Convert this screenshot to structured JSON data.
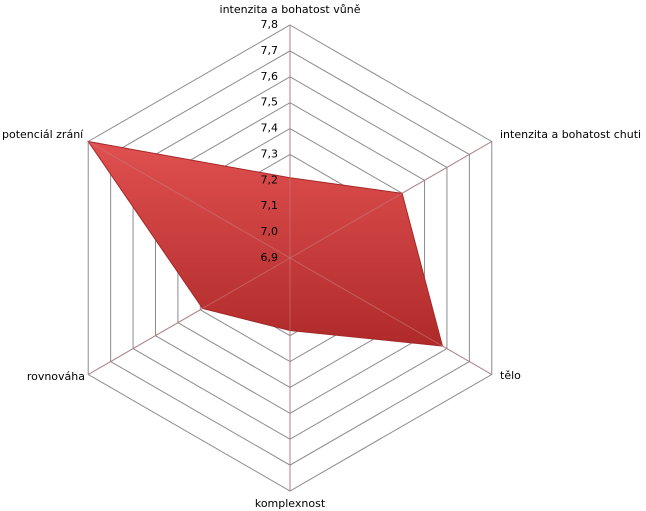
{
  "chart_data": {
    "type": "radar",
    "categories": [
      "intenzita a bohatost vůně",
      "intenzita a bohatost chuti",
      "tělo",
      "komplexnost",
      "rovnováha",
      "potenciál zrání"
    ],
    "values": [
      7.21,
      7.4,
      7.58,
      7.18,
      7.29,
      7.8
    ],
    "color": "#d04040",
    "ylim": [
      6.9,
      7.8
    ],
    "yticks": [
      {
        "value": 6.9,
        "label": "6,9"
      },
      {
        "value": 7.0,
        "label": "7,0"
      },
      {
        "value": 7.1,
        "label": "7,1"
      },
      {
        "value": 7.2,
        "label": "7,2"
      },
      {
        "value": 7.3,
        "label": "7,3"
      },
      {
        "value": 7.4,
        "label": "7,4"
      },
      {
        "value": 7.5,
        "label": "7,5"
      },
      {
        "value": 7.6,
        "label": "7,6"
      },
      {
        "value": 7.7,
        "label": "7,7"
      },
      {
        "value": 7.8,
        "label": "7,8"
      }
    ],
    "grid": true
  }
}
